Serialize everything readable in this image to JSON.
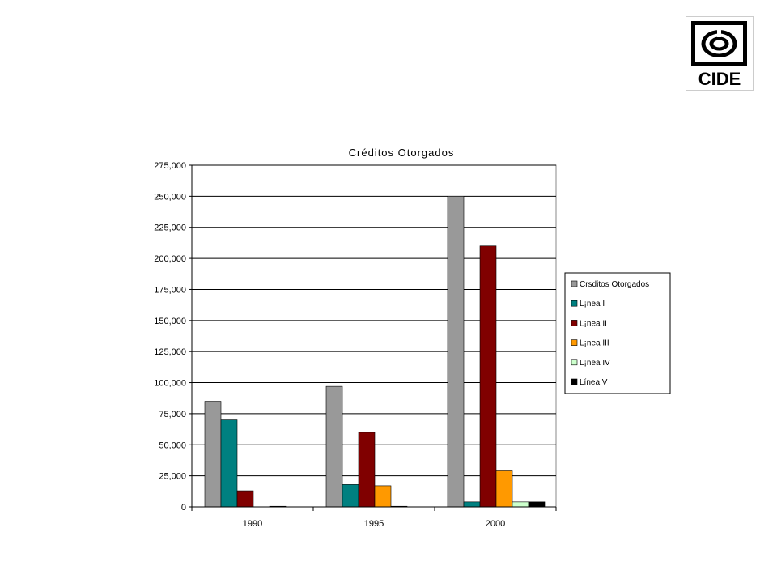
{
  "logo": {
    "text": "CIDE",
    "icon": "cide-spiral-icon"
  },
  "chart_data": {
    "type": "bar",
    "title": "Créditos Otorgados",
    "categories": [
      "1990",
      "1995",
      "2000"
    ],
    "ylim": [
      0,
      275000
    ],
    "yticks": [
      "0",
      "25,000",
      "50,000",
      "75,000",
      "100,000",
      "125,000",
      "150,000",
      "175,000",
      "200,000",
      "225,000",
      "250,000",
      "275,000"
    ],
    "grid": true,
    "legend_position": "right",
    "series": [
      {
        "name": "Crѕditos Otorgados",
        "color": "#999999",
        "values": [
          85000,
          97000,
          250000
        ]
      },
      {
        "name": "L¡nea I",
        "color": "#008080",
        "values": [
          70000,
          18000,
          4000
        ]
      },
      {
        "name": "L¡nea II",
        "color": "#800000",
        "values": [
          13000,
          60000,
          210000
        ]
      },
      {
        "name": "L¡nea III",
        "color": "#ff9900",
        "values": [
          0,
          17000,
          29000
        ]
      },
      {
        "name": "L¡nea IV",
        "color": "#ccffcc",
        "values": [
          500,
          500,
          4000
        ]
      },
      {
        "name": "Línea V",
        "color": "#000000",
        "values": [
          0,
          0,
          4000
        ]
      }
    ]
  }
}
